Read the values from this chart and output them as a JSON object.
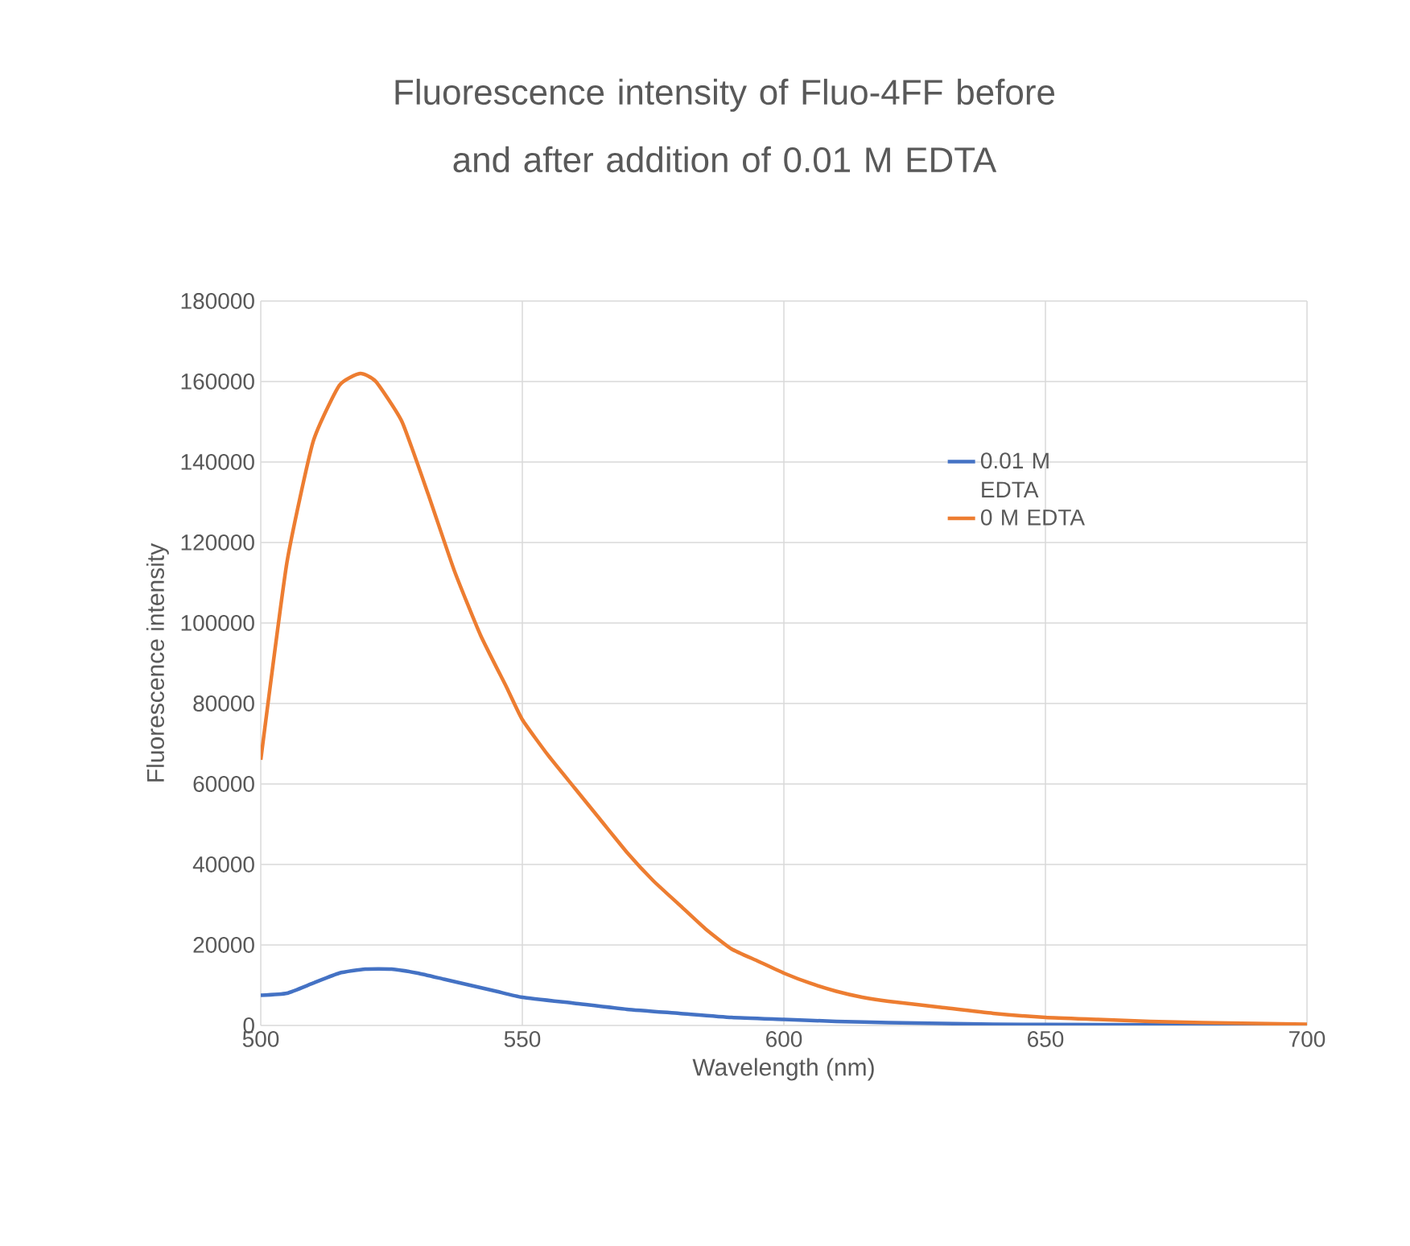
{
  "chart_data": {
    "type": "line",
    "title": "Fluorescence intensity of Fluo-4FF before and after addition of 0.01 M EDTA",
    "xlabel": "Wavelength (nm)",
    "ylabel": "Fluorescence intensity",
    "xlim": [
      500,
      700
    ],
    "xticks": [
      500,
      550,
      600,
      650,
      700
    ],
    "ylim": [
      0,
      180000
    ],
    "yticks": [
      0,
      20000,
      40000,
      60000,
      80000,
      100000,
      120000,
      140000,
      160000,
      180000
    ],
    "grid": true,
    "legend": "right",
    "marker": "none",
    "line_style": "solid",
    "series": [
      {
        "name": "0.01 M EDTA",
        "color": "#4472c4",
        "x": [
          500,
          505,
          510,
          515,
          520,
          525,
          530,
          535,
          540,
          545,
          550,
          560,
          570,
          580,
          590,
          600,
          610,
          620,
          640,
          660,
          680,
          700
        ],
        "values": [
          7500,
          8000,
          10500,
          13000,
          14000,
          14000,
          13000,
          11500,
          10000,
          8500,
          7000,
          5500,
          4000,
          3000,
          2000,
          1500,
          1000,
          700,
          300,
          200,
          100,
          100
        ]
      },
      {
        "name": "0 M EDTA",
        "color": "#ed7d31",
        "x": [
          500,
          505,
          510,
          515,
          519,
          522,
          527,
          532,
          537,
          542,
          547,
          550,
          555,
          560,
          565,
          570,
          575,
          580,
          585,
          590,
          595,
          600,
          605,
          610,
          615,
          620,
          630,
          640,
          650,
          660,
          670,
          680,
          690,
          700
        ],
        "values": [
          66000,
          115000,
          145000,
          159000,
          162000,
          160000,
          150000,
          132000,
          113000,
          97000,
          84000,
          76000,
          67000,
          59000,
          51000,
          43000,
          36000,
          30000,
          24000,
          19000,
          16000,
          13000,
          10500,
          8500,
          7000,
          6000,
          4500,
          3000,
          2000,
          1500,
          1000,
          700,
          500,
          300
        ]
      }
    ]
  }
}
